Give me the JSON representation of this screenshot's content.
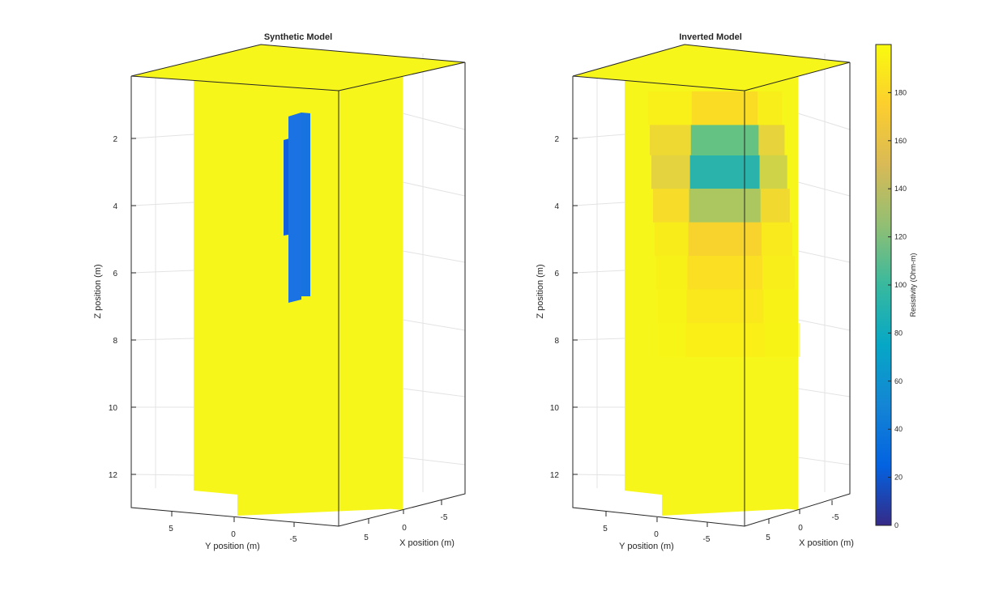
{
  "figure": {
    "colormap": "parula",
    "background": "#ffffff"
  },
  "colorbar": {
    "label": "Resistivity (Ohm-m)",
    "ticks": [
      "0",
      "20",
      "40",
      "60",
      "80",
      "100",
      "120",
      "140",
      "160",
      "180"
    ],
    "range": [
      0,
      200
    ]
  },
  "chart_data": [
    {
      "type": "3d-slice",
      "title": "Synthetic Model",
      "xlabel": "X position (m)",
      "ylabel": "Y position (m)",
      "zlabel": "Z position (m)",
      "x_ticks": [
        "5",
        "0",
        "-5"
      ],
      "y_ticks": [
        "5",
        "0",
        "-5"
      ],
      "z_ticks": [
        "2",
        "4",
        "6",
        "8",
        "10",
        "12"
      ],
      "zlim": [
        0,
        13
      ],
      "z_reversed": true,
      "grid": true,
      "background_value": 200,
      "anomaly": {
        "value": 40,
        "depth_range": [
          1.7,
          6.8
        ],
        "description_color": "#1a6fe0"
      }
    },
    {
      "type": "3d-slice",
      "title": "Inverted Model",
      "xlabel": "X position (m)",
      "ylabel": "Y position (m)",
      "zlabel": "Z position (m)",
      "x_ticks": [
        "5",
        "0",
        "-5"
      ],
      "y_ticks": [
        "5",
        "0",
        "-5"
      ],
      "z_ticks": [
        "2",
        "4",
        "6",
        "8",
        "10",
        "12"
      ],
      "zlim": [
        0,
        13
      ],
      "z_reversed": true,
      "grid": true,
      "background_value": 200,
      "depth_profile": [
        {
          "z_top": 0.6,
          "z_bot": 1.6,
          "value": 180
        },
        {
          "z_top": 1.6,
          "z_bot": 2.5,
          "value": 105
        },
        {
          "z_top": 2.5,
          "z_bot": 3.5,
          "value": 75
        },
        {
          "z_top": 3.5,
          "z_bot": 4.5,
          "value": 130
        },
        {
          "z_top": 4.5,
          "z_bot": 5.5,
          "value": 172
        },
        {
          "z_top": 5.5,
          "z_bot": 6.5,
          "value": 182
        },
        {
          "z_top": 6.5,
          "z_bot": 7.5,
          "value": 188
        },
        {
          "z_top": 7.5,
          "z_bot": 8.5,
          "value": 192
        }
      ]
    }
  ]
}
